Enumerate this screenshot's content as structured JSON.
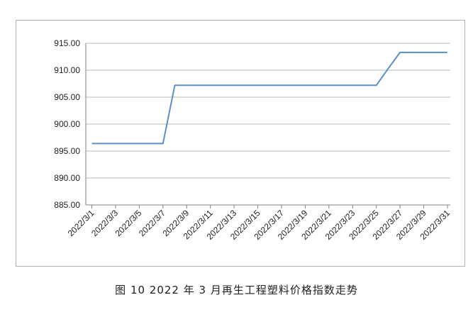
{
  "caption": "图 10 2022 年 3 月再生工程塑料价格指数走势",
  "colors": {
    "line": "#5b8fc7",
    "grid": "#b8b8b8",
    "axis": "#808080",
    "text": "#222222"
  },
  "chart_data": {
    "type": "line",
    "title": "",
    "xlabel": "",
    "ylabel": "",
    "ylim": [
      885,
      915
    ],
    "yticks": [
      "915.00",
      "910.00",
      "905.00",
      "900.00",
      "895.00",
      "890.00",
      "885.00"
    ],
    "grid": true,
    "x_tick_labels": [
      "2022/3/1",
      "2022/3/3",
      "2022/3/5",
      "2022/3/7",
      "2022/3/9",
      "2022/3/11",
      "2022/3/13",
      "2022/3/15",
      "2022/3/17",
      "2022/3/19",
      "2022/3/21",
      "2022/3/23",
      "2022/3/25",
      "2022/3/27",
      "2022/3/29",
      "2022/3/31"
    ],
    "x": [
      "2022/3/1",
      "2022/3/2",
      "2022/3/3",
      "2022/3/4",
      "2022/3/5",
      "2022/3/6",
      "2022/3/7",
      "2022/3/8",
      "2022/3/9",
      "2022/3/10",
      "2022/3/11",
      "2022/3/12",
      "2022/3/13",
      "2022/3/14",
      "2022/3/15",
      "2022/3/16",
      "2022/3/17",
      "2022/3/18",
      "2022/3/19",
      "2022/3/20",
      "2022/3/21",
      "2022/3/22",
      "2022/3/23",
      "2022/3/24",
      "2022/3/25",
      "2022/3/26",
      "2022/3/27",
      "2022/3/28",
      "2022/3/29",
      "2022/3/30",
      "2022/3/31"
    ],
    "values": [
      896.4,
      896.4,
      896.4,
      896.4,
      896.4,
      896.4,
      896.4,
      907.2,
      907.2,
      907.2,
      907.2,
      907.2,
      907.2,
      907.2,
      907.2,
      907.2,
      907.2,
      907.2,
      907.2,
      907.2,
      907.2,
      907.2,
      907.2,
      907.2,
      907.2,
      910.3,
      913.3,
      913.3,
      913.3,
      913.3,
      913.3
    ]
  }
}
